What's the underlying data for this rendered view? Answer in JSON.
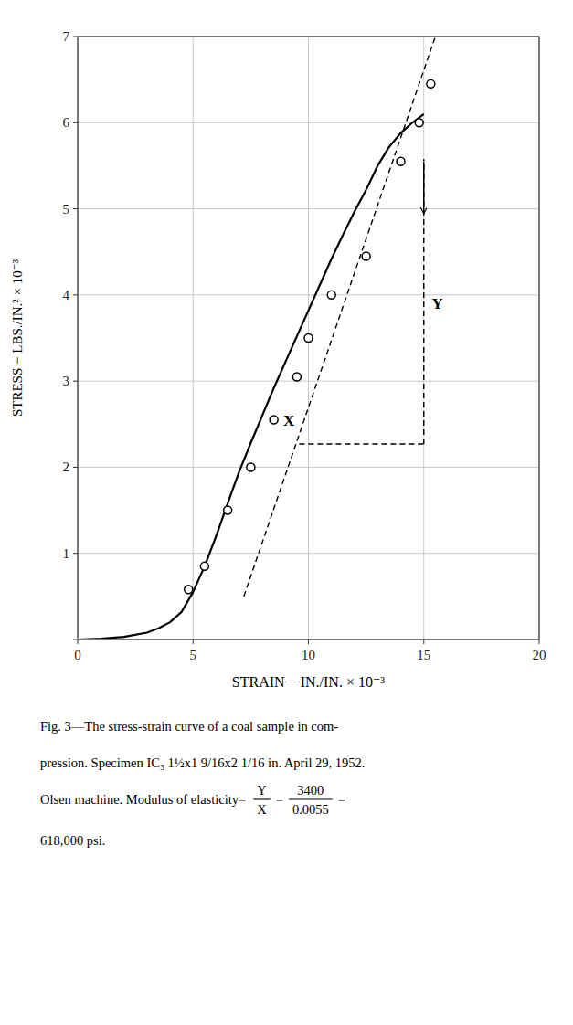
{
  "chart_data": {
    "type": "line",
    "title": "",
    "xlabel": "STRAIN − IN./IN. × 10⁻³",
    "ylabel": "STRESS − LBS./IN.² × 10⁻³",
    "xlim": [
      0,
      20
    ],
    "ylim": [
      0,
      7
    ],
    "xticks": [
      0,
      5,
      10,
      15,
      20
    ],
    "yticks": [
      0,
      1,
      2,
      3,
      4,
      5,
      6,
      7
    ],
    "grid": true,
    "series": [
      {
        "type": "line",
        "color": "#000000",
        "line_style": "solid",
        "x": [
          0.0,
          1.0,
          2.0,
          3.0,
          3.5,
          4.0,
          4.5,
          5.0,
          5.5,
          6.0,
          6.5,
          7.0,
          7.5,
          8.0,
          8.5,
          9.0,
          9.5,
          10.0,
          10.5,
          11.0,
          11.5,
          12.0,
          12.5,
          13.0,
          13.5,
          14.0,
          14.5,
          15.0
        ],
        "values": [
          0.0,
          0.01,
          0.03,
          0.08,
          0.13,
          0.2,
          0.32,
          0.55,
          0.85,
          1.2,
          1.58,
          1.95,
          2.28,
          2.6,
          2.92,
          3.22,
          3.52,
          3.82,
          4.12,
          4.42,
          4.7,
          4.97,
          5.22,
          5.5,
          5.72,
          5.88,
          6.0,
          6.1
        ]
      },
      {
        "type": "scatter",
        "color": "#000000",
        "marker": "open-circle",
        "x": [
          4.8,
          5.5,
          6.5,
          7.5,
          8.5,
          9.5,
          10.0,
          11.0,
          12.5,
          14.0,
          14.8,
          15.3
        ],
        "values": [
          0.58,
          0.85,
          1.5,
          2.0,
          2.55,
          3.05,
          3.5,
          4.0,
          4.45,
          5.55,
          6.0,
          6.45
        ]
      },
      {
        "type": "line",
        "color": "#000000",
        "line_style": "dashed",
        "x": [
          7.2,
          15.5
        ],
        "values": [
          0.5,
          7.0
        ]
      },
      {
        "type": "line",
        "color": "#000000",
        "line_style": "dashed",
        "x": [
          9.6,
          15.0
        ],
        "values": [
          2.27,
          2.27
        ]
      },
      {
        "type": "line",
        "color": "#000000",
        "line_style": "dashed",
        "x": [
          15.0,
          15.0
        ],
        "values": [
          2.27,
          5.58
        ]
      }
    ],
    "annotations": [
      {
        "text": "X",
        "x": 9.4,
        "y": 2.45
      },
      {
        "text": "Y",
        "x": 15.35,
        "y": 3.9
      },
      {
        "type": "arrow",
        "x": 15.0,
        "y_start": 5.55,
        "y_end": 4.95
      }
    ],
    "caption": {
      "lines": [
        "Fig. 3—The stress-strain curve of a coal sample in com-",
        "pression. Specimen IC₃ 1½x1 9/16x2 1/16 in.  April 29, 1952.",
        "Olsen machine.  Modulus of elasticity="
      ],
      "fraction1": {
        "numerator": "Y",
        "denominator": "X"
      },
      "operator": "=",
      "fraction2": {
        "numerator": "3400",
        "denominator": "0.0055"
      },
      "line4": "618,000 psi."
    }
  }
}
